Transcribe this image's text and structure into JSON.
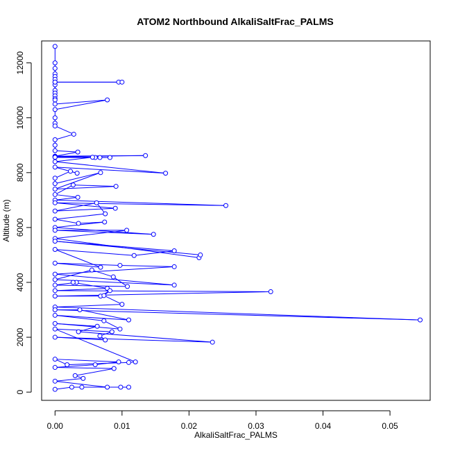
{
  "chart_data": {
    "type": "line",
    "title": "ATOM2 Northbound AlkaliSaltFrac_PALMS",
    "xlabel": "AlkaliSaltFrac_PALMS",
    "ylabel": "Altitude (m)",
    "xlim": [
      -0.002,
      0.056
    ],
    "ylim": [
      -300,
      12800
    ],
    "xticks": [
      0,
      0.01,
      0.02,
      0.03,
      0.04,
      0.05
    ],
    "xtick_labels": [
      "0.00",
      "0.01",
      "0.02",
      "0.03",
      "0.04",
      "0.05"
    ],
    "yticks": [
      0,
      2000,
      4000,
      6000,
      8000,
      10000,
      12000
    ],
    "ytick_labels": [
      "0",
      "2000",
      "4000",
      "6000",
      "8000",
      "10000",
      "12000"
    ],
    "marker": "open-circle",
    "grid": false,
    "color": "#0000ff",
    "series": [
      {
        "x": [
          0,
          0,
          0,
          0,
          0,
          0,
          0,
          0,
          0,
          0,
          0,
          0,
          0,
          0.0095,
          0.01,
          0,
          0,
          0,
          0.0078,
          0,
          0,
          0,
          0,
          0.0028,
          0,
          0,
          0,
          0.0034,
          0,
          0.0135,
          0,
          0.0082,
          0,
          0.0067,
          0,
          0.006,
          0.0056,
          0,
          0.0165,
          0,
          0.0033,
          0.0023,
          0,
          0,
          0.0068,
          0,
          0.0091,
          0.0027,
          0,
          0.0034,
          0,
          0.0255,
          0,
          0.009,
          0,
          0.0062,
          0.0075,
          0,
          0.0035,
          0.0074,
          0,
          0.0147,
          0,
          0.0107,
          0,
          0.0215,
          0.0217,
          0,
          0.0178,
          0.0118,
          0,
          0.0068,
          0,
          0.0097,
          0.0178,
          0,
          0.0178,
          0,
          0.0055,
          0.0087,
          0.0108,
          0,
          0.0032,
          0.0027,
          0.0078,
          0,
          0.0322,
          0,
          0.0068,
          0.0082,
          0.0073,
          0.01,
          0,
          0.0545,
          0,
          0.0037,
          0.011,
          0,
          0.0073,
          0.0097,
          0,
          0.0063,
          0.0035,
          0.0235,
          0,
          0.0075,
          0.0067,
          0.0085,
          0,
          0.012,
          0.011,
          0.0018,
          0,
          0.0095,
          0.006,
          0,
          0.0088,
          0.003,
          0.0042,
          0,
          0.0078,
          0.0098,
          0.011,
          0.004,
          0.0025,
          0
        ],
        "y": [
          12600,
          12000,
          11800,
          11600,
          11500,
          11400,
          11300,
          11200,
          11000,
          10900,
          10800,
          10700,
          11300,
          11300,
          11300,
          11300,
          10650,
          10500,
          10650,
          10300,
          10000,
          9800,
          9700,
          9400,
          9200,
          9000,
          8800,
          8750,
          8600,
          8620,
          8580,
          8550,
          8560,
          8550,
          8560,
          8550,
          8560,
          8400,
          7980,
          8200,
          7980,
          8050,
          7800,
          7600,
          8000,
          7400,
          7500,
          7550,
          7200,
          7100,
          7000,
          6800,
          6900,
          6700,
          6600,
          6900,
          6500,
          6300,
          6150,
          6200,
          6000,
          5750,
          5900,
          5900,
          5600,
          4900,
          5000,
          5500,
          5150,
          4980,
          5200,
          4550,
          4700,
          4620,
          4570,
          4300,
          3900,
          4100,
          4450,
          4200,
          3850,
          3900,
          4000,
          4000,
          3780,
          3700,
          3660,
          3500,
          3500,
          3700,
          3520,
          3200,
          3100,
          2630,
          3000,
          3000,
          2630,
          2800,
          2600,
          2300,
          2500,
          2400,
          2200,
          1820,
          2000,
          1900,
          2050,
          2200,
          2300,
          1100,
          1080,
          1000,
          1200,
          1100,
          1000,
          900,
          860,
          600,
          500,
          400,
          180,
          180,
          180,
          180,
          180,
          100
        ]
      }
    ]
  }
}
